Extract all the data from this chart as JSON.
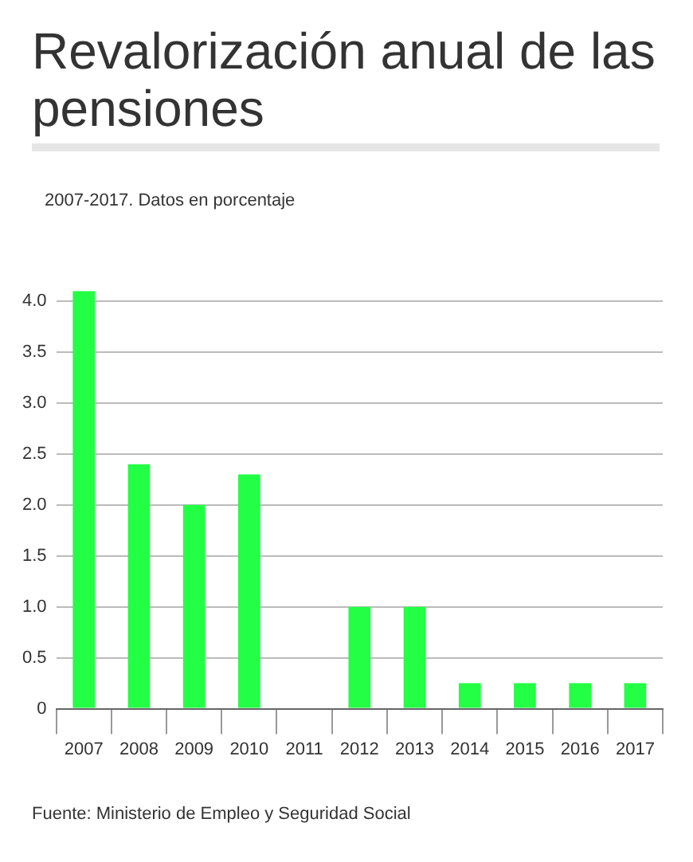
{
  "chart_data": {
    "type": "bar",
    "title": "Revalorización anual de las pensiones",
    "subtitle": "2007-2017. Datos en porcentaje",
    "categories": [
      "2007",
      "2008",
      "2009",
      "2010",
      "2011",
      "2012",
      "2013",
      "2014",
      "2015",
      "2016",
      "2017"
    ],
    "values": [
      4.1,
      2.4,
      2.0,
      2.3,
      0,
      1.0,
      1.0,
      0.25,
      0.25,
      0.25,
      0.25
    ],
    "color": "#22ff44",
    "ylim": [
      0,
      4.1
    ],
    "yticks": [
      0,
      0.5,
      {
        "value": 1,
        "label": "1.0"
      },
      1.5,
      {
        "value": 2,
        "label": "2.0"
      },
      2.5,
      {
        "value": 3,
        "label": "3.0"
      },
      3.5,
      {
        "value": 4,
        "label": "4.0"
      }
    ],
    "grid": "y",
    "legend": false,
    "annotations": [
      "Fuente: Ministerio de Empleo y Seguridad Social"
    ]
  }
}
